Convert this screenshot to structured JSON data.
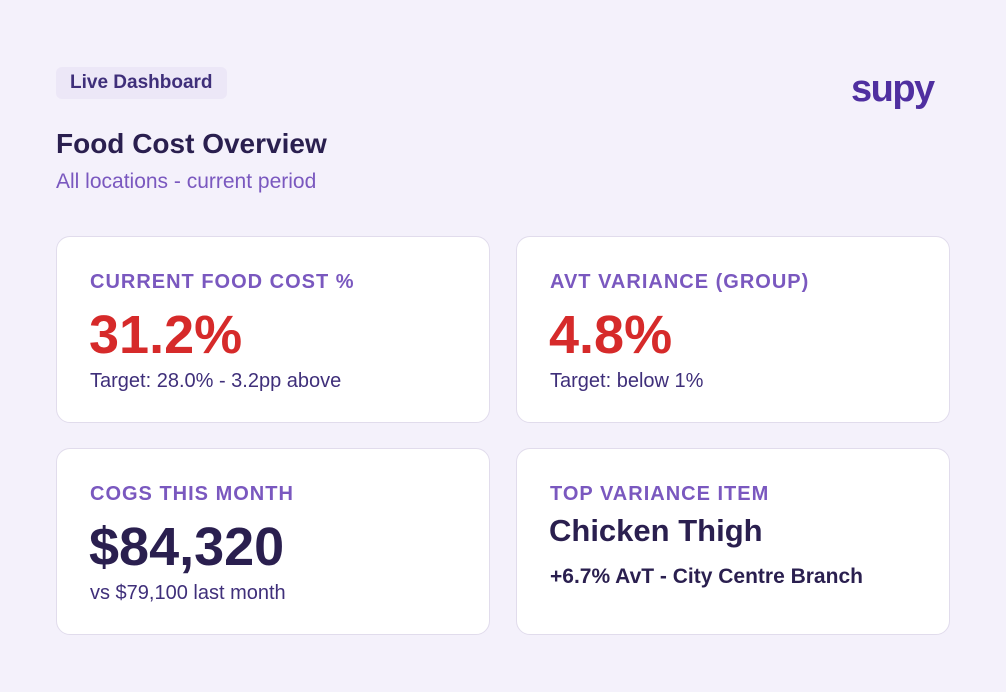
{
  "header": {
    "badge": "Live Dashboard",
    "logo": "supy",
    "title": "Food Cost Overview",
    "subtitle": "All locations - current period"
  },
  "cards": [
    {
      "label": "CURRENT FOOD COST %",
      "value": "31.2%",
      "note": "Target: 28.0% - 3.2pp above"
    },
    {
      "label": "AVT VARIANCE (GROUP)",
      "value": "4.8%",
      "note": "Target: below 1%"
    },
    {
      "label": "COGS THIS MONTH",
      "value": "$84,320",
      "note": "vs $79,100 last month"
    },
    {
      "label": "TOP VARIANCE ITEM",
      "item_name": "Chicken Thigh",
      "item_detail": "+6.7% AvT - City Centre Branch"
    }
  ],
  "colors": {
    "background": "#f4f1fb",
    "accent": "#7a58bf",
    "brand": "#4f2fa0",
    "alert": "#d62a2a",
    "text_dark": "#2a1f4f"
  }
}
